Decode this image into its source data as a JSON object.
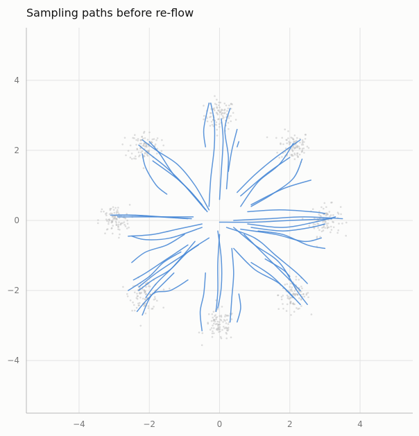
{
  "chart_data": {
    "type": "line",
    "title": "Sampling paths before re-flow",
    "xlabel": "",
    "ylabel": "",
    "xlim": [
      -5.5,
      5.5
    ],
    "ylim": [
      -5.5,
      5.5
    ],
    "x_ticks": [
      -4,
      -2,
      0,
      2,
      4
    ],
    "y_ticks": [
      -4,
      -2,
      0,
      2,
      4
    ],
    "x_tick_labels": [
      "−4",
      "−2",
      "0",
      "2",
      "4"
    ],
    "y_tick_labels": [
      "−4",
      "−2",
      "0",
      "2",
      "4"
    ],
    "grid": true,
    "colors": {
      "paths": "#4a8ad6",
      "samples": "#b5b5b5",
      "grid": "#e3e3e3",
      "axis": "#b8b8b8"
    },
    "sample_clusters": [
      {
        "center": [
          0,
          3
        ]
      },
      {
        "center": [
          2.12,
          2.12
        ]
      },
      {
        "center": [
          3,
          0
        ]
      },
      {
        "center": [
          2.12,
          -2.12
        ]
      },
      {
        "center": [
          0,
          -3
        ]
      },
      {
        "center": [
          -2.12,
          -2.12
        ]
      },
      {
        "center": [
          -3,
          0
        ]
      },
      {
        "center": [
          -2.12,
          2.12
        ]
      }
    ],
    "paths": [
      {
        "points": [
          [
            -0.3,
            0.3
          ],
          [
            -0.7,
            1.0
          ],
          [
            -1.2,
            1.6
          ],
          [
            -1.8,
            2.0
          ],
          [
            -2.2,
            2.3
          ]
        ]
      },
      {
        "points": [
          [
            -0.35,
            0.25
          ],
          [
            -0.8,
            0.8
          ],
          [
            -1.3,
            1.3
          ],
          [
            -1.7,
            1.9
          ],
          [
            -2.0,
            2.25
          ]
        ]
      },
      {
        "points": [
          [
            -0.4,
            0.3
          ],
          [
            -1.0,
            1.0
          ],
          [
            -1.5,
            1.5
          ],
          [
            -2.0,
            1.9
          ],
          [
            -2.3,
            2.15
          ]
        ]
      },
      {
        "points": [
          [
            -1.5,
            0.75
          ],
          [
            -1.8,
            1.0
          ],
          [
            -2.1,
            1.5
          ],
          [
            -2.2,
            1.9
          ]
        ]
      },
      {
        "points": [
          [
            -0.5,
            0.45
          ],
          [
            -1.1,
            1.1
          ],
          [
            -1.9,
            1.7
          ]
        ]
      },
      {
        "points": [
          [
            0.0,
            0.6
          ],
          [
            0.05,
            1.4
          ],
          [
            0.1,
            2.3
          ],
          [
            0.05,
            2.9
          ]
        ]
      },
      {
        "points": [
          [
            -0.3,
            0.4
          ],
          [
            -0.25,
            1.2
          ],
          [
            -0.15,
            2.1
          ],
          [
            -0.15,
            2.8
          ],
          [
            -0.25,
            3.35
          ]
        ]
      },
      {
        "points": [
          [
            -0.4,
            2.1
          ],
          [
            -0.45,
            2.6
          ],
          [
            -0.3,
            3.35
          ]
        ]
      },
      {
        "points": [
          [
            0.2,
            0.9
          ],
          [
            0.25,
            1.8
          ],
          [
            0.15,
            2.6
          ],
          [
            0.3,
            3.2
          ]
        ]
      },
      {
        "points": [
          [
            0.25,
            1.4
          ],
          [
            0.35,
            2.0
          ],
          [
            0.5,
            2.6
          ]
        ]
      },
      {
        "points": [
          [
            0.5,
            2.1
          ],
          [
            0.55,
            2.25
          ]
        ]
      },
      {
        "points": [
          [
            0.5,
            0.8
          ],
          [
            1.0,
            1.3
          ],
          [
            1.6,
            1.8
          ],
          [
            2.3,
            2.3
          ]
        ]
      },
      {
        "points": [
          [
            0.6,
            0.4
          ],
          [
            1.1,
            1.1
          ],
          [
            1.7,
            1.6
          ],
          [
            2.1,
            2.2
          ]
        ]
      },
      {
        "points": [
          [
            0.9,
            0.4
          ],
          [
            1.5,
            0.75
          ],
          [
            2.1,
            1.2
          ],
          [
            2.35,
            1.75
          ]
        ]
      },
      {
        "points": [
          [
            0.6,
            0.7
          ],
          [
            1.3,
            1.3
          ],
          [
            2.0,
            1.8
          ]
        ]
      },
      {
        "points": [
          [
            0.9,
            0.45
          ],
          [
            1.8,
            0.9
          ],
          [
            2.6,
            1.15
          ]
        ]
      },
      {
        "points": [
          [
            0.0,
            -0.05
          ],
          [
            1.0,
            -0.05
          ],
          [
            2.0,
            0.0
          ],
          [
            3.2,
            0.05
          ]
        ]
      },
      {
        "points": [
          [
            0.4,
            0.0
          ],
          [
            1.4,
            0.05
          ],
          [
            2.4,
            0.1
          ],
          [
            3.5,
            0.05
          ]
        ]
      },
      {
        "points": [
          [
            0.8,
            0.25
          ],
          [
            1.7,
            0.3
          ],
          [
            2.6,
            0.25
          ],
          [
            3.0,
            0.2
          ]
        ]
      },
      {
        "points": [
          [
            0.8,
            -0.1
          ],
          [
            1.8,
            -0.2
          ],
          [
            2.7,
            -0.05
          ],
          [
            3.3,
            0.1
          ]
        ]
      },
      {
        "points": [
          [
            0.9,
            -0.2
          ],
          [
            1.8,
            -0.3
          ],
          [
            2.6,
            -0.2
          ],
          [
            3.0,
            -0.1
          ]
        ]
      },
      {
        "points": [
          [
            0.6,
            -0.25
          ],
          [
            1.6,
            -0.4
          ],
          [
            2.4,
            -0.6
          ],
          [
            2.9,
            -0.5
          ]
        ]
      },
      {
        "points": [
          [
            1.1,
            -0.3
          ],
          [
            1.8,
            -0.4
          ],
          [
            2.5,
            -0.7
          ],
          [
            3.0,
            -0.8
          ]
        ]
      },
      {
        "points": [
          [
            0.2,
            -0.2
          ],
          [
            1.0,
            -0.5
          ],
          [
            1.6,
            -1.0
          ],
          [
            2.2,
            -1.5
          ],
          [
            2.5,
            -1.8
          ]
        ]
      },
      {
        "points": [
          [
            0.4,
            -0.2
          ],
          [
            1.0,
            -0.7
          ],
          [
            1.7,
            -1.2
          ],
          [
            2.2,
            -2.0
          ],
          [
            2.5,
            -2.4
          ]
        ]
      },
      {
        "points": [
          [
            0.4,
            -0.8
          ],
          [
            1.0,
            -1.4
          ],
          [
            1.7,
            -1.8
          ],
          [
            2.3,
            -2.4
          ]
        ]
      },
      {
        "points": [
          [
            0.7,
            -0.4
          ],
          [
            1.3,
            -1.0
          ],
          [
            1.8,
            -1.5
          ],
          [
            2.3,
            -2.0
          ]
        ]
      },
      {
        "points": [
          [
            0.9,
            -1.2
          ],
          [
            1.5,
            -1.6
          ],
          [
            2.1,
            -2.2
          ]
        ]
      },
      {
        "points": [
          [
            1.3,
            -1.1
          ],
          [
            1.8,
            -1.4
          ],
          [
            2.0,
            -1.6
          ]
        ]
      },
      {
        "points": [
          [
            0.0,
            -0.4
          ],
          [
            -0.05,
            -1.2
          ],
          [
            -0.05,
            -2.0
          ],
          [
            -0.1,
            -2.6
          ]
        ]
      },
      {
        "points": [
          [
            -0.05,
            -0.3
          ],
          [
            0.05,
            -1.1
          ],
          [
            0.05,
            -1.9
          ],
          [
            -0.05,
            -2.5
          ]
        ]
      },
      {
        "points": [
          [
            -0.4,
            -1.5
          ],
          [
            -0.45,
            -2.1
          ],
          [
            -0.55,
            -2.6
          ],
          [
            -0.5,
            -3.15
          ]
        ]
      },
      {
        "points": [
          [
            0.35,
            -0.8
          ],
          [
            0.4,
            -1.5
          ],
          [
            0.35,
            -2.2
          ],
          [
            0.3,
            -2.9
          ]
        ]
      },
      {
        "points": [
          [
            0.55,
            -2.1
          ],
          [
            0.6,
            -2.5
          ],
          [
            0.5,
            -2.9
          ]
        ]
      },
      {
        "points": [
          [
            -0.3,
            -0.5
          ],
          [
            -0.9,
            -0.9
          ],
          [
            -1.4,
            -1.4
          ],
          [
            -1.9,
            -1.7
          ],
          [
            -2.3,
            -2.0
          ]
        ]
      },
      {
        "points": [
          [
            -0.6,
            -0.7
          ],
          [
            -1.2,
            -1.1
          ],
          [
            -1.8,
            -1.5
          ],
          [
            -2.3,
            -1.9
          ]
        ]
      },
      {
        "points": [
          [
            -0.9,
            -0.7
          ],
          [
            -1.5,
            -1.1
          ],
          [
            -2.1,
            -1.5
          ],
          [
            -2.45,
            -1.7
          ]
        ]
      },
      {
        "points": [
          [
            -1.1,
            -0.9
          ],
          [
            -1.6,
            -1.2
          ],
          [
            -2.0,
            -1.6
          ],
          [
            -2.6,
            -2.0
          ]
        ]
      },
      {
        "points": [
          [
            -0.7,
            -0.6
          ],
          [
            -1.3,
            -1.3
          ],
          [
            -1.8,
            -1.8
          ],
          [
            -2.1,
            -2.2
          ]
        ]
      },
      {
        "points": [
          [
            -0.5,
            -0.2
          ],
          [
            -1.4,
            -0.5
          ],
          [
            -2.1,
            -0.55
          ],
          [
            -2.5,
            -0.45
          ]
        ]
      },
      {
        "points": [
          [
            -0.5,
            -0.1
          ],
          [
            -1.2,
            -0.25
          ],
          [
            -1.9,
            -0.4
          ],
          [
            -2.6,
            -0.45
          ]
        ]
      },
      {
        "points": [
          [
            -0.8,
            0.05
          ],
          [
            -1.6,
            0.1
          ],
          [
            -2.4,
            0.15
          ],
          [
            -2.95,
            0.15
          ]
        ]
      },
      {
        "points": [
          [
            -0.75,
            0.1
          ],
          [
            -1.5,
            0.1
          ],
          [
            -2.3,
            0.1
          ],
          [
            -2.9,
            0.1
          ]
        ]
      },
      {
        "points": [
          [
            -0.9,
            0.05
          ],
          [
            -1.7,
            0.1
          ],
          [
            -2.6,
            0.15
          ],
          [
            -3.1,
            0.15
          ]
        ]
      },
      {
        "points": [
          [
            -1.0,
            -0.4
          ],
          [
            -1.5,
            -0.7
          ],
          [
            -2.1,
            -0.9
          ],
          [
            -2.5,
            -1.2
          ]
        ]
      },
      {
        "points": [
          [
            -1.3,
            -1.5
          ],
          [
            -1.7,
            -1.9
          ],
          [
            -2.1,
            -2.3
          ],
          [
            -2.35,
            -2.6
          ]
        ]
      },
      {
        "points": [
          [
            -0.9,
            -1.7
          ],
          [
            -1.4,
            -2.0
          ],
          [
            -1.9,
            -2.1
          ],
          [
            -2.2,
            -2.7
          ]
        ]
      }
    ]
  }
}
